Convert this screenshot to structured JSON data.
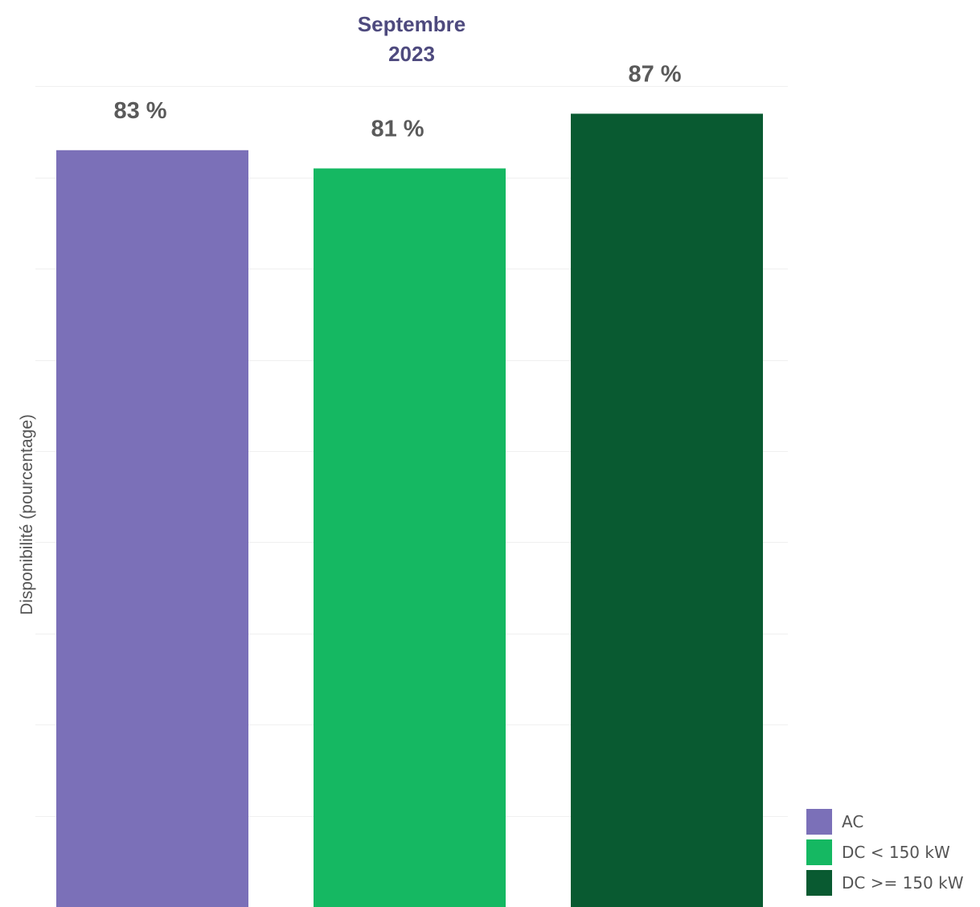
{
  "chart_data": {
    "type": "bar",
    "title_line1": "Septembre",
    "title_line2": "2023",
    "ylabel": "Disponibilité (pourcentage)",
    "ylim": [
      0,
      100
    ],
    "categories": [
      "AC",
      "DC < 150 kW",
      "DC >= 150 kW"
    ],
    "values": [
      83,
      81,
      87
    ],
    "data_labels": [
      "83 %",
      "81 %",
      "87 %"
    ],
    "colors": [
      "#7b70b8",
      "#15b862",
      "#095a31"
    ],
    "title_color": "#4e4a7e",
    "legend": {
      "placement": "bottom-right",
      "entries": [
        "AC",
        "DC < 150 kW",
        "DC >= 150 kW"
      ]
    },
    "grid": true
  }
}
